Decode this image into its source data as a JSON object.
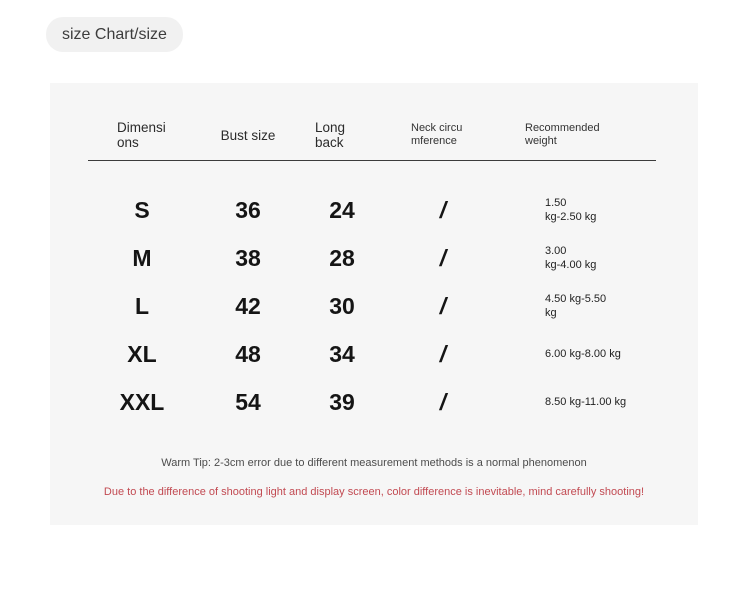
{
  "badge": {
    "label": "size Chart/size"
  },
  "size_chart": {
    "headers": [
      {
        "line1": "Dimensi",
        "line2": "ons"
      },
      {
        "line1": "Bust size",
        "line2": ""
      },
      {
        "line1": "Long",
        "line2": "back"
      },
      {
        "line1": "Neck circu",
        "line2": "mference"
      },
      {
        "line1": "Recommended",
        "line2": "weight"
      }
    ],
    "rows": [
      {
        "size": "S",
        "bust": "36",
        "long_back": "24",
        "neck_circumference": "/",
        "weight_line1": "1.50",
        "weight_line2": "kg-2.50 kg"
      },
      {
        "size": "M",
        "bust": "38",
        "long_back": "28",
        "neck_circumference": "/",
        "weight_line1": "3.00",
        "weight_line2": "kg-4.00 kg"
      },
      {
        "size": "L",
        "bust": "42",
        "long_back": "30",
        "neck_circumference": "/",
        "weight_line1": "4.50 kg-5.50",
        "weight_line2": "kg"
      },
      {
        "size": "XL",
        "bust": "48",
        "long_back": "34",
        "neck_circumference": "/",
        "weight_line1": "6.00 kg-8.00 kg",
        "weight_line2": ""
      },
      {
        "size": "XXL",
        "bust": "54",
        "long_back": "39",
        "neck_circumference": "/",
        "weight_line1": "8.50 kg-11.00 kg",
        "weight_line2": ""
      }
    ],
    "notes": {
      "warm_tip": "Warm Tip: 2-3cm error due to different measurement methods is a normal phenomenon",
      "color_warning": "Due to the difference of shooting light and display screen, color difference is inevitable, mind carefully shooting!"
    }
  },
  "colors": {
    "card_background": "#f6f6f6",
    "badge_background": "#f1f1f1",
    "header_rule": "#3c3c3c",
    "warning_red": "#c24a52",
    "text_primary": "#151515",
    "text_secondary": "#4c4c4c"
  }
}
